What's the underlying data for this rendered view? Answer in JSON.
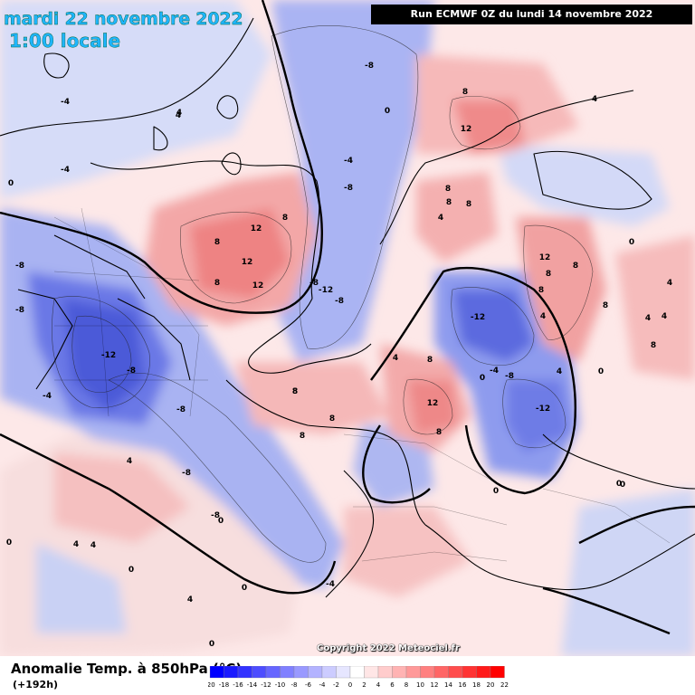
{
  "header": {
    "date": "mardi 22 novembre 2022",
    "time": "1:00 locale",
    "run": "Run ECMWF 0Z du lundi 14 novembre 2022"
  },
  "footer": {
    "title": "Anomalie Temp. à 850hPa (°C)",
    "lead": "(+192h)",
    "copyright": "Copyright 2022 Meteociel.fr"
  },
  "legend": {
    "ticks": [
      "-20",
      "-18",
      "-16",
      "-14",
      "-12",
      "-10",
      "-8",
      "-6",
      "-4",
      "-2",
      "0",
      "2",
      "4",
      "6",
      "8",
      "10",
      "12",
      "14",
      "16",
      "18",
      "20",
      "22"
    ],
    "colors": [
      "#0000ff",
      "#1a1aff",
      "#3333ff",
      "#4d4dff",
      "#6666ff",
      "#8080ff",
      "#9999ff",
      "#b3b3ff",
      "#ccccff",
      "#e6e6ff",
      "#ffffff",
      "#ffe6e6",
      "#ffcccc",
      "#ffb3b3",
      "#ff9999",
      "#ff8080",
      "#ff6666",
      "#ff4d4d",
      "#ff3333",
      "#ff1a1a",
      "#ff0000"
    ]
  },
  "map_labels": [
    {
      "text": "-8"
    },
    {
      "text": "-4"
    },
    {
      "text": "0"
    },
    {
      "text": "-8"
    },
    {
      "text": "-4"
    },
    {
      "text": "0"
    },
    {
      "text": "-4"
    },
    {
      "text": "4"
    },
    {
      "text": "8"
    },
    {
      "text": "12"
    },
    {
      "text": "8"
    },
    {
      "text": "12"
    },
    {
      "text": "8"
    },
    {
      "text": "12"
    },
    {
      "text": "-8"
    },
    {
      "text": "-8"
    },
    {
      "text": "-12"
    },
    {
      "text": "-8"
    },
    {
      "text": "8"
    },
    {
      "text": "12"
    },
    {
      "text": "8"
    },
    {
      "text": "4"
    },
    {
      "text": "-12"
    },
    {
      "text": "-8"
    },
    {
      "text": "-4"
    },
    {
      "text": "-12"
    },
    {
      "text": "-8"
    },
    {
      "text": "-12"
    },
    {
      "text": "-8"
    },
    {
      "text": "-4"
    },
    {
      "text": "-8"
    },
    {
      "text": "8"
    },
    {
      "text": "8"
    },
    {
      "text": "8"
    },
    {
      "text": "4"
    },
    {
      "text": "12"
    },
    {
      "text": "8"
    },
    {
      "text": "12"
    },
    {
      "text": "8"
    },
    {
      "text": "4"
    },
    {
      "text": "8"
    },
    {
      "text": "4"
    },
    {
      "text": "4"
    },
    {
      "text": "8"
    },
    {
      "text": "0"
    },
    {
      "text": "0"
    },
    {
      "text": "4"
    },
    {
      "text": "0"
    },
    {
      "text": "4"
    },
    {
      "text": "0"
    },
    {
      "text": "4"
    },
    {
      "text": "0"
    },
    {
      "text": "0"
    },
    {
      "text": "4"
    },
    {
      "text": "-4"
    },
    {
      "text": "0"
    },
    {
      "text": "8"
    },
    {
      "text": "8"
    },
    {
      "text": "0"
    },
    {
      "text": "0"
    },
    {
      "text": "4"
    },
    {
      "text": "4"
    },
    {
      "text": "8"
    },
    {
      "text": "8"
    },
    {
      "text": "-8"
    },
    {
      "text": "-8"
    },
    {
      "text": "4"
    },
    {
      "text": "0"
    },
    {
      "text": "0"
    },
    {
      "text": "8"
    },
    {
      "text": "8"
    },
    {
      "text": "4"
    }
  ]
}
